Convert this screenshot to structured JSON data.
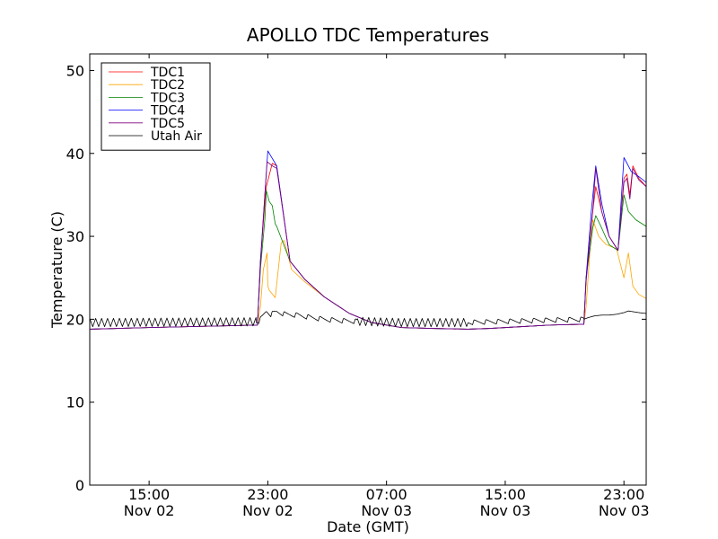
{
  "chart_data": {
    "type": "line",
    "title": "APOLLO TDC Temperatures",
    "xlabel": "Date (GMT)",
    "ylabel": "Temperature (C)",
    "xlim": [
      11.0,
      48.5
    ],
    "ylim": [
      0,
      52
    ],
    "grid": false,
    "legend_position": "top-left",
    "yticks": [
      0,
      10,
      20,
      30,
      40,
      50
    ],
    "xticks": [
      {
        "x": 15,
        "time": "15:00",
        "date": "Nov 02"
      },
      {
        "x": 23,
        "time": "23:00",
        "date": "Nov 02"
      },
      {
        "x": 31,
        "time": "07:00",
        "date": "Nov 03"
      },
      {
        "x": 39,
        "time": "15:00",
        "date": "Nov 03"
      },
      {
        "x": 47,
        "time": "23:00",
        "date": "Nov 03"
      }
    ],
    "series": [
      {
        "name": "TDC1",
        "color": "#ff0000",
        "x": [
          11.0,
          15,
          20,
          22.3,
          22.5,
          22.8,
          22.9,
          23.3,
          23.6,
          24.5,
          25.5,
          26.8,
          28.5,
          30,
          32,
          34,
          36.5,
          38,
          40,
          42,
          44.3,
          44.45,
          44.9,
          45.1,
          45.5,
          46,
          46.6,
          47,
          47.2,
          47.4,
          47.6,
          48,
          48.5
        ],
        "y": [
          18.8,
          19.0,
          19.2,
          19.3,
          27,
          34,
          36,
          38.8,
          38.5,
          27,
          24.8,
          22.7,
          20.7,
          19.6,
          19.0,
          18.9,
          18.8,
          18.9,
          19.1,
          19.3,
          19.4,
          25,
          33,
          36,
          33,
          30,
          28.3,
          37,
          37.5,
          35,
          38.5,
          37,
          36
        ]
      },
      {
        "name": "TDC2",
        "color": "#ffa500",
        "x": [
          11.0,
          15,
          20,
          22.3,
          22.5,
          22.7,
          22.95,
          23.0,
          23.1,
          23.5,
          23.9,
          24.1,
          24.6,
          25.5,
          26.8,
          28.5,
          30,
          32,
          34,
          36.5,
          38,
          40,
          42,
          44.3,
          44.45,
          44.7,
          44.9,
          45.3,
          45.8,
          46.5,
          47,
          47.3,
          47.6,
          48,
          48.5
        ],
        "y": [
          18.8,
          19.0,
          19.2,
          19.3,
          21.5,
          26,
          28,
          24,
          23.5,
          22.6,
          29.2,
          29.5,
          26,
          24.5,
          22.7,
          20.7,
          19.6,
          19.0,
          18.9,
          18.8,
          18.9,
          19.1,
          19.3,
          19.4,
          21.5,
          28,
          32,
          30,
          29,
          28.5,
          25,
          28,
          24,
          23,
          22.5
        ]
      },
      {
        "name": "TDC3",
        "color": "#008000",
        "x": [
          11.0,
          15,
          20,
          22.3,
          22.5,
          22.8,
          22.9,
          23.1,
          23.3,
          23.5,
          23.6,
          24.5,
          25.5,
          26.8,
          28.5,
          30,
          32,
          34,
          36.5,
          38,
          40,
          42,
          44.3,
          44.45,
          44.9,
          45.1,
          45.5,
          46,
          46.6,
          47,
          47.3,
          47.8,
          48.5
        ],
        "y": [
          18.8,
          19.0,
          19.2,
          19.3,
          26,
          32,
          35.5,
          34.2,
          33.7,
          31.5,
          31.2,
          27,
          24.8,
          22.7,
          20.7,
          19.6,
          19.0,
          18.9,
          18.8,
          18.9,
          19.1,
          19.3,
          19.4,
          25,
          31,
          32.5,
          31,
          29,
          28.3,
          35,
          33,
          32,
          31.2
        ]
      },
      {
        "name": "TDC4",
        "color": "#0000ff",
        "x": [
          11.0,
          15,
          20,
          22.3,
          22.5,
          22.8,
          23.0,
          23.2,
          23.6,
          24.5,
          25.5,
          26.8,
          28.5,
          30,
          32,
          34,
          36.5,
          38,
          40,
          42,
          44.3,
          44.45,
          44.8,
          45.1,
          45.5,
          46,
          46.6,
          47,
          47.15,
          47.5,
          48,
          48.5
        ],
        "y": [
          18.8,
          19.0,
          19.2,
          19.3,
          27,
          35,
          40.3,
          39.7,
          38.5,
          27,
          24.8,
          22.7,
          20.7,
          19.6,
          19.0,
          18.9,
          18.8,
          18.9,
          19.1,
          19.3,
          19.4,
          25,
          33,
          38.5,
          34,
          30,
          28.3,
          39.5,
          39,
          37.8,
          37.2,
          36.5
        ]
      },
      {
        "name": "TDC5",
        "color": "#800080",
        "x": [
          11.0,
          15,
          20,
          22.3,
          22.5,
          22.8,
          22.95,
          23.3,
          23.6,
          24.5,
          25.5,
          26.8,
          28.5,
          30,
          32,
          34,
          36.5,
          38,
          40,
          42,
          44.3,
          44.45,
          44.9,
          45.1,
          45.5,
          46,
          46.6,
          47,
          47.2,
          47.4,
          47.6,
          48,
          48.5
        ],
        "y": [
          18.8,
          19.0,
          19.2,
          19.3,
          26.5,
          35,
          39,
          38.5,
          38.2,
          27,
          24.8,
          22.7,
          20.7,
          19.6,
          19.0,
          18.9,
          18.8,
          18.9,
          19.1,
          19.3,
          19.4,
          24.5,
          33,
          38.2,
          33,
          30,
          28.3,
          36.5,
          37,
          34.5,
          38.2,
          36.8,
          36
        ]
      },
      {
        "name": "Utah Air",
        "color": "#000000",
        "x": [
          11.0,
          22.2,
          22.4,
          22.6,
          22.9,
          23.2,
          23.6,
          24.2,
          25,
          26,
          26.8,
          27.5,
          28.3,
          30,
          32,
          34,
          36,
          38,
          40,
          42,
          44.3,
          44.6,
          45,
          45.5,
          46,
          46.5,
          47,
          47.3,
          48,
          48.5
        ],
        "y": [
          19.6,
          19.7,
          19.8,
          20.2,
          21.0,
          20.6,
          20.9,
          20.6,
          20.5,
          20.2,
          20.0,
          19.9,
          19.8,
          19.7,
          19.6,
          19.6,
          19.6,
          19.7,
          19.8,
          19.9,
          20.0,
          20.2,
          20.4,
          20.5,
          20.5,
          20.6,
          20.8,
          21.0,
          20.8,
          20.7
        ]
      }
    ],
    "annotations": {
      "utah_air_oscillation_ranges": [
        [
          11.0,
          22.2
        ],
        [
          29.0,
          36.5
        ]
      ],
      "utah_air_oscillation_amplitude": 0.5,
      "utah_air_oscillation_period_hours": 0.4,
      "utah_air_sawtooth_ranges": [
        [
          22.2,
          29.0
        ],
        [
          36.5,
          44.3
        ]
      ],
      "utah_air_sawtooth_period_hours": 0.8
    }
  }
}
